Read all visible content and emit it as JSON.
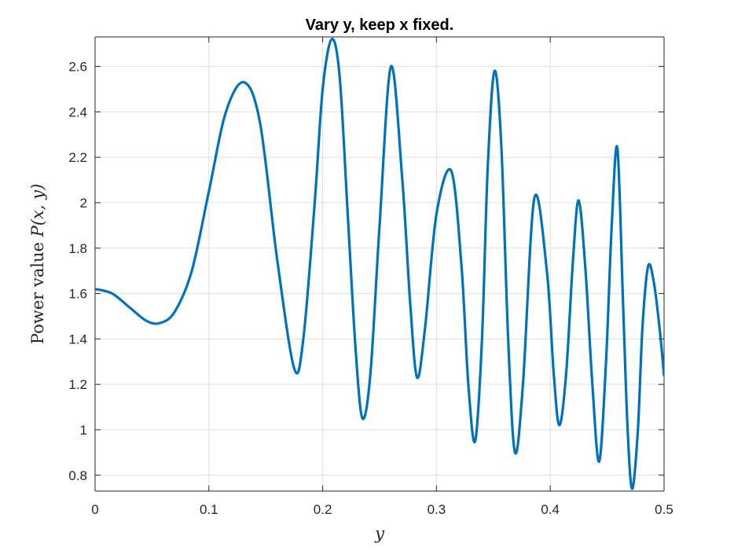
{
  "chart_data": {
    "type": "line",
    "title": "Vary y, keep x fixed.",
    "xlabel": "y",
    "ylabel_prefix": "Power value ",
    "ylabel_math": "P(x, y)",
    "xlim": [
      0,
      0.5
    ],
    "ylim": [
      0.73,
      2.73
    ],
    "x_ticks": [
      0,
      0.1,
      0.2,
      0.3,
      0.4,
      0.5
    ],
    "x_tick_labels": [
      "0",
      "0.1",
      "0.2",
      "0.3",
      "0.4",
      "0.5"
    ],
    "y_ticks": [
      0.8,
      1.0,
      1.2,
      1.4,
      1.6,
      1.8,
      2.0,
      2.2,
      2.4,
      2.6
    ],
    "y_tick_labels": [
      "0.8",
      "1",
      "1.2",
      "1.4",
      "1.6",
      "1.8",
      "2",
      "2.2",
      "2.4",
      "2.6"
    ],
    "grid": true,
    "legend": "none",
    "series": [
      {
        "color": "#0072BD",
        "x": [
          0,
          0.015,
          0.03,
          0.045,
          0.057,
          0.07,
          0.085,
          0.1,
          0.115,
          0.131,
          0.145,
          0.16,
          0.175,
          0.183,
          0.193,
          0.2,
          0.208,
          0.215,
          0.222,
          0.229,
          0.235,
          0.242,
          0.25,
          0.26,
          0.27,
          0.277,
          0.283,
          0.29,
          0.3,
          0.313,
          0.322,
          0.328,
          0.334,
          0.34,
          0.345,
          0.351,
          0.357,
          0.363,
          0.369,
          0.376,
          0.386,
          0.397,
          0.403,
          0.408,
          0.414,
          0.42,
          0.425,
          0.431,
          0.437,
          0.443,
          0.449,
          0.454,
          0.459,
          0.464,
          0.468,
          0.472,
          0.477,
          0.481,
          0.486,
          0.491,
          0.496,
          0.5
        ],
        "values": [
          1.62,
          1.6,
          1.54,
          1.48,
          1.47,
          1.52,
          1.7,
          2.05,
          2.4,
          2.53,
          2.35,
          1.75,
          1.27,
          1.4,
          2.0,
          2.5,
          2.72,
          2.55,
          1.95,
          1.35,
          1.05,
          1.25,
          1.9,
          2.6,
          2.1,
          1.55,
          1.23,
          1.45,
          1.95,
          2.14,
          1.72,
          1.2,
          0.95,
          1.4,
          2.15,
          2.58,
          2.25,
          1.4,
          0.9,
          1.2,
          2.02,
          1.7,
          1.25,
          1.02,
          1.25,
          1.75,
          2.01,
          1.7,
          1.2,
          0.86,
          1.3,
          1.9,
          2.24,
          1.55,
          1.0,
          0.74,
          1.0,
          1.45,
          1.72,
          1.65,
          1.45,
          1.24
        ]
      }
    ]
  }
}
